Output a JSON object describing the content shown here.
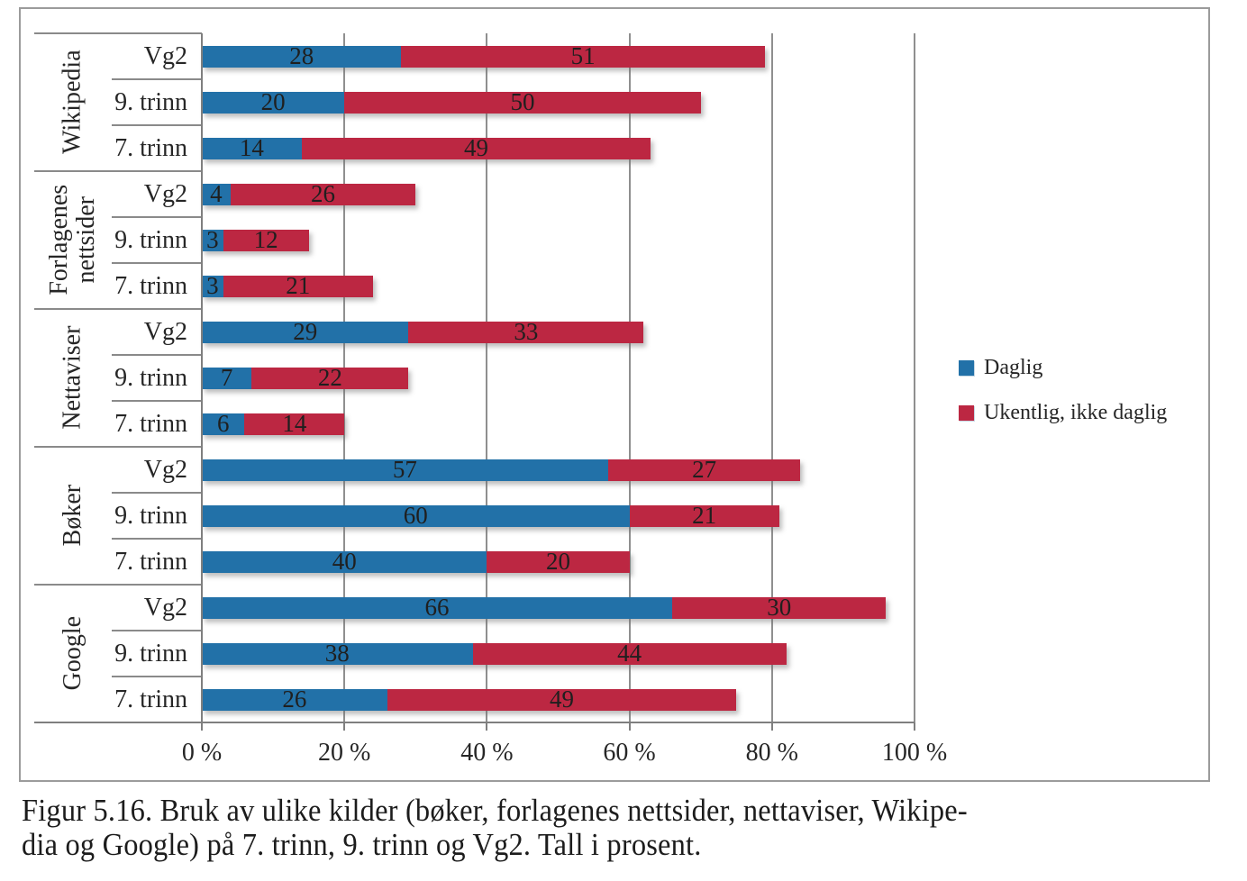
{
  "figure_caption": {
    "lines": [
      "Figur 5.16. Bruk av ulike kilder (bøker, forlagenes nettsider, nettaviser, Wikipe-",
      "dia og Google) på 7. trinn, 9. trinn og Vg2. Tall i prosent."
    ]
  },
  "legend": {
    "items": [
      {
        "label": "Daglig",
        "color": "#2271A8"
      },
      {
        "label": "Ukentlig, ikke daglig",
        "color": "#BC2742"
      }
    ]
  },
  "colors": {
    "daglig_blue": "#2271A8",
    "ukentlig_red": "#BC2742",
    "gridline_gray": "#8F8F8F",
    "axis_gray": "#7F7F7F",
    "frame_gray": "#9B9B9B"
  },
  "chart_data": {
    "type": "bar",
    "orientation": "horizontal",
    "stacked": true,
    "unit": "percent",
    "legend_position": "right",
    "series": [
      {
        "name": "Daglig",
        "color": "#2271A8"
      },
      {
        "name": "Ukentlig, ikke daglig",
        "color": "#BC2742"
      }
    ],
    "x_axis": {
      "ticks": [
        "0 %",
        "20 %",
        "40 %",
        "60 %",
        "80 %",
        "100 %"
      ],
      "range": [
        0,
        100
      ],
      "grid": true
    },
    "groups": [
      {
        "label": "Wikipedia",
        "rows": [
          {
            "label": "Vg2",
            "values": [
              28,
              51
            ]
          },
          {
            "label": "9. trinn",
            "values": [
              20,
              50
            ]
          },
          {
            "label": "7. trinn",
            "values": [
              14,
              49
            ]
          }
        ]
      },
      {
        "label": "Forlagenes nettsider",
        "rows": [
          {
            "label": "Vg2",
            "values": [
              4,
              26
            ]
          },
          {
            "label": "9. trinn",
            "values": [
              3,
              12
            ]
          },
          {
            "label": "7. trinn",
            "values": [
              3,
              21
            ]
          }
        ]
      },
      {
        "label": "Nettaviser",
        "rows": [
          {
            "label": "Vg2",
            "values": [
              29,
              33
            ]
          },
          {
            "label": "9. trinn",
            "values": [
              7,
              22
            ]
          },
          {
            "label": "7. trinn",
            "values": [
              6,
              14
            ]
          }
        ]
      },
      {
        "label": "Bøker",
        "rows": [
          {
            "label": "Vg2",
            "values": [
              57,
              27
            ]
          },
          {
            "label": "9. trinn",
            "values": [
              60,
              21
            ]
          },
          {
            "label": "7. trinn",
            "values": [
              40,
              20
            ]
          }
        ]
      },
      {
        "label": "Google",
        "rows": [
          {
            "label": "Vg2",
            "values": [
              66,
              30
            ]
          },
          {
            "label": "9. trinn",
            "values": [
              38,
              44
            ]
          },
          {
            "label": "7. trinn",
            "values": [
              26,
              49
            ]
          }
        ]
      }
    ]
  }
}
